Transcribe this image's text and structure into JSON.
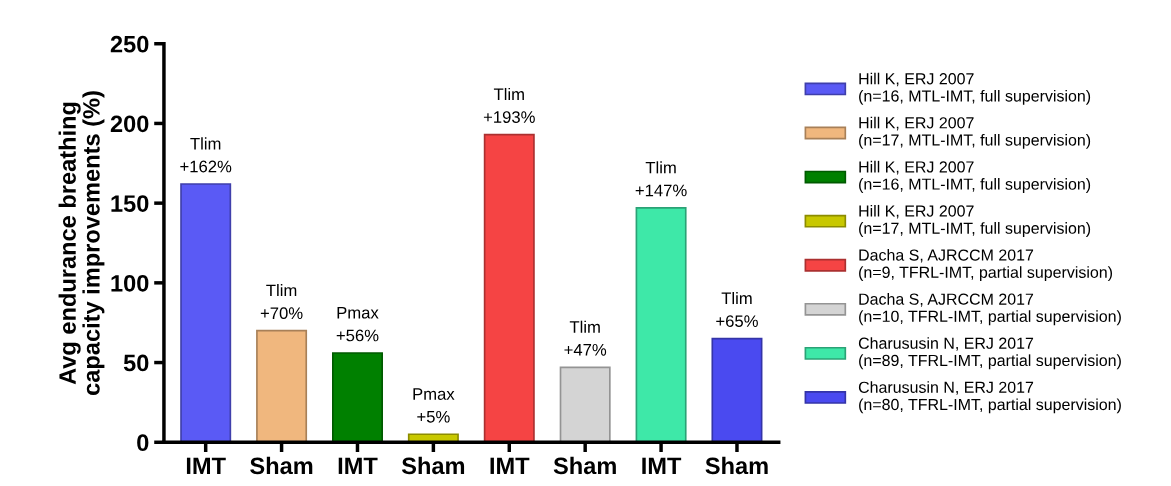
{
  "chart_data": {
    "type": "bar",
    "ylabel": "Avg endurance breathing\ncapacity improvements (%)",
    "categories": [
      "IMT",
      "Sham",
      "IMT",
      "Sham",
      "IMT",
      "Sham",
      "IMT",
      "Sham"
    ],
    "series": [
      {
        "name": "Hill K, ERJ 2007\n(n=16, MTL-IMT, full supervision)",
        "color": "#5a5af5",
        "values": [
          162,
          null,
          null,
          null,
          null,
          null,
          null,
          null
        ],
        "value_labels": [
          "Tlim\n+162%",
          null,
          null,
          null,
          null,
          null,
          null,
          null
        ]
      },
      {
        "name": "Hill K, ERJ 2007\n(n=17, MTL-IMT, full supervision)",
        "color": "#f0b77e",
        "values": [
          null,
          70,
          null,
          null,
          null,
          null,
          null,
          null
        ],
        "value_labels": [
          null,
          "Tlim\n+70%",
          null,
          null,
          null,
          null,
          null,
          null
        ]
      },
      {
        "name": "Hill K, ERJ 2007\n(n=16, MTL-IMT, full supervision)",
        "color": "#008000",
        "values": [
          null,
          null,
          56,
          null,
          null,
          null,
          null,
          null
        ],
        "value_labels": [
          null,
          null,
          "Pmax\n+56%",
          null,
          null,
          null,
          null,
          null
        ]
      },
      {
        "name": "Hill K, ERJ 2007\n(n=17, MTL-IMT, full supervision)",
        "color": "#c8c800",
        "values": [
          null,
          null,
          null,
          5,
          null,
          null,
          null,
          null
        ],
        "value_labels": [
          null,
          null,
          null,
          "Pmax\n+5%",
          null,
          null,
          null,
          null
        ]
      },
      {
        "name": "Dacha S, AJRCCM 2017\n(n=9, TFRL-IMT, partial supervision)",
        "color": "#f54444",
        "values": [
          null,
          null,
          null,
          null,
          193,
          null,
          null,
          null
        ],
        "value_labels": [
          null,
          null,
          null,
          null,
          "Tlim\n+193%",
          null,
          null,
          null
        ]
      },
      {
        "name": "Dacha S, AJRCCM 2017\n(n=10, TFRL-IMT, partial supervision)",
        "color": "#d4d4d4",
        "values": [
          null,
          null,
          null,
          null,
          null,
          47,
          null,
          null
        ],
        "value_labels": [
          null,
          null,
          null,
          null,
          null,
          "Tlim\n+47%",
          null,
          null
        ]
      },
      {
        "name": "Charususin N, ERJ 2017\n(n=89, TFRL-IMT, partial supervision)",
        "color": "#3ee8a8",
        "values": [
          null,
          null,
          null,
          null,
          null,
          null,
          147,
          null
        ],
        "value_labels": [
          null,
          null,
          null,
          null,
          null,
          null,
          "Tlim\n+147%",
          null
        ]
      },
      {
        "name": "Charususin N, ERJ 2017\n(n=80, TFRL-IMT, partial supervision)",
        "color": "#4a4af0",
        "values": [
          null,
          null,
          null,
          null,
          null,
          null,
          null,
          65
        ],
        "value_labels": [
          null,
          null,
          null,
          null,
          null,
          null,
          null,
          "Tlim\n+65%"
        ]
      }
    ],
    "ylim": [
      0,
      250
    ],
    "yticks": [
      0,
      50,
      100,
      150,
      200,
      250
    ],
    "legend": "right",
    "grid": false
  }
}
